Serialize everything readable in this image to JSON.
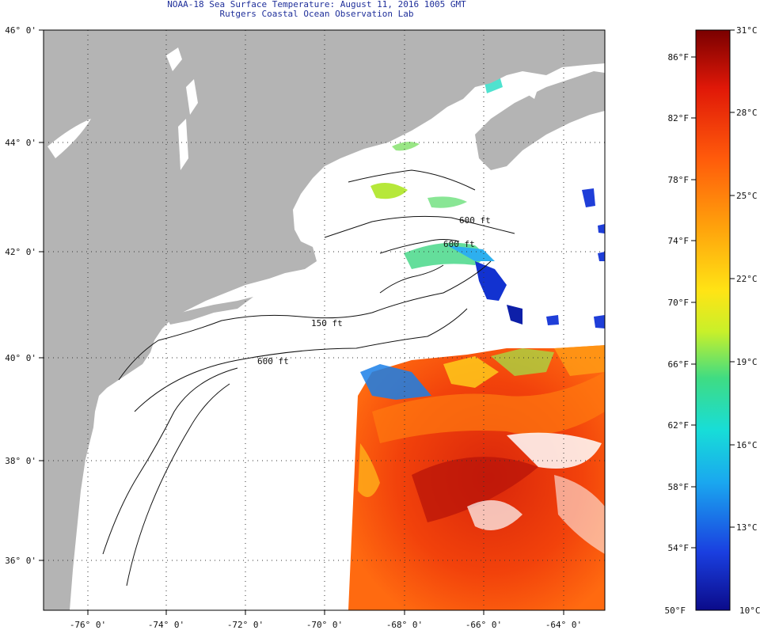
{
  "header": {
    "title_line1": "NOAA-18 Sea Surface Temperature:  August 11, 2016 1005 GMT",
    "title_line2": "Rutgers Coastal Ocean Observation Lab"
  },
  "map": {
    "lat_labels": [
      "46° 0'",
      "44° 0'",
      "42° 0'",
      "40° 0'",
      "38° 0'",
      "36° 0'"
    ],
    "lon_labels": [
      "-76° 0'",
      "-74° 0'",
      "-72° 0'",
      "-70° 0'",
      "-68° 0'",
      "-66° 0'",
      "-64° 0'"
    ],
    "isobath_labels": [
      "600 ft",
      "600 ft",
      "150 ft",
      "600 ft"
    ],
    "colors": {
      "land": "#b4b4b4",
      "no_data": "#ffffff",
      "graticule": "#444444"
    }
  },
  "colorbar": {
    "celsius_labels": [
      "31°C",
      "28°C",
      "25°C",
      "22°C",
      "19°C",
      "16°C",
      "13°C",
      "10°C"
    ],
    "fahrenheit_labels": [
      "86°F",
      "82°F",
      "78°F",
      "74°F",
      "70°F",
      "66°F",
      "62°F",
      "58°F",
      "54°F",
      "50°F"
    ],
    "range_c": [
      10,
      31
    ],
    "range_f": [
      50,
      88
    ],
    "stops": [
      "#0b0b8a",
      "#1a3fe0",
      "#1aa7ef",
      "#17ddd8",
      "#3fdc83",
      "#c8f02a",
      "#ffe415",
      "#ffa20c",
      "#ff5a0b",
      "#e01808",
      "#7a0000"
    ]
  }
}
